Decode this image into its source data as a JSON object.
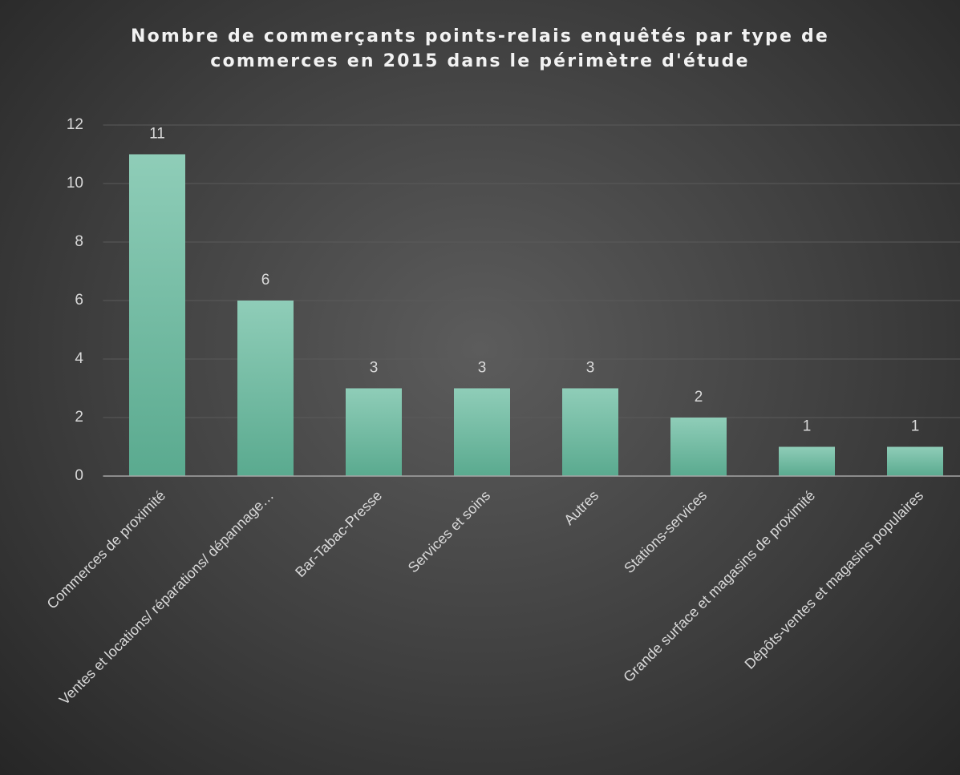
{
  "chart_data": {
    "type": "bar",
    "title": "Nombre de commerçants points-relais enquêtés par type de commerces en 2015 dans le périmètre d'étude",
    "categories": [
      "Commerces de proximité",
      "Ventes et locations/ réparations/ dépannage…",
      "Bar-Tabac-Presse",
      "Services et soins",
      "Autres",
      "Stations-services",
      "Grande surface et magasins de proximité",
      "Dépôts-ventes et magasins populaires"
    ],
    "values": [
      11,
      6,
      3,
      3,
      3,
      2,
      1,
      1
    ],
    "color": "#6dbfa3",
    "ylim": [
      0,
      12
    ],
    "yticks": [
      0,
      2,
      4,
      6,
      8,
      10,
      12
    ],
    "grid": true
  }
}
